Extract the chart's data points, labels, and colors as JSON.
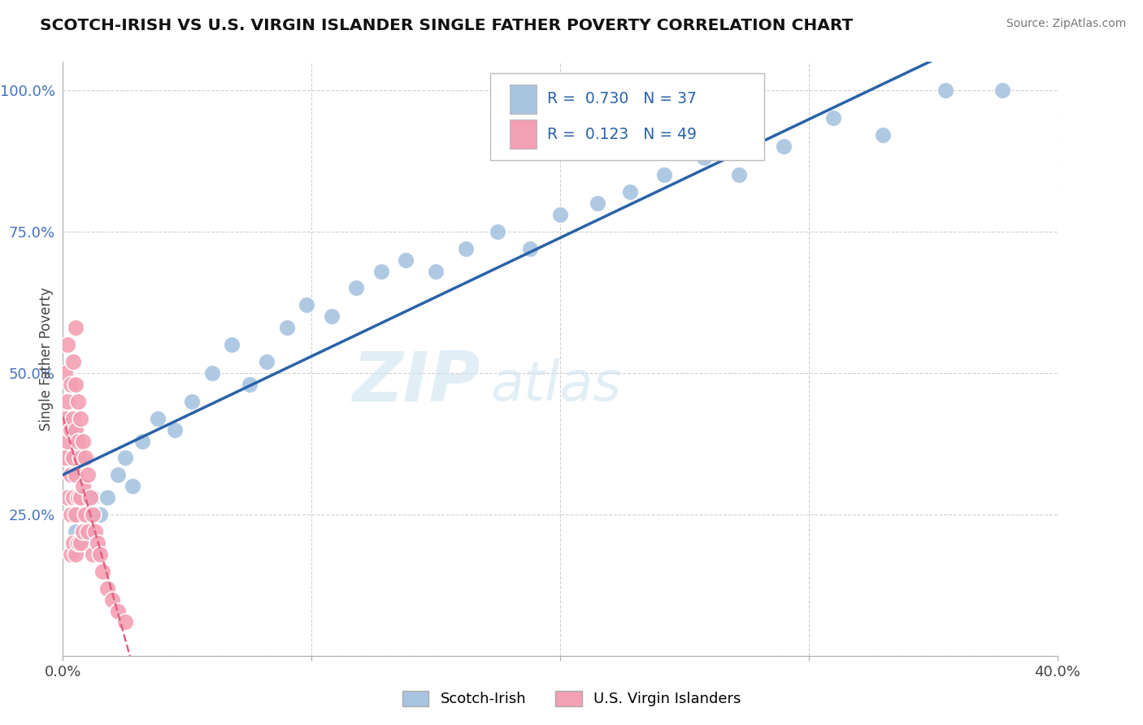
{
  "title": "SCOTCH-IRISH VS U.S. VIRGIN ISLANDER SINGLE FATHER POVERTY CORRELATION CHART",
  "source": "Source: ZipAtlas.com",
  "ylabel": "Single Father Poverty",
  "xlim": [
    0.0,
    0.4
  ],
  "ylim": [
    0.0,
    1.05
  ],
  "scotch_irish_R": 0.73,
  "scotch_irish_N": 37,
  "virgin_islander_R": 0.123,
  "virgin_islander_N": 49,
  "scotch_irish_color": "#a8c4e0",
  "scotch_irish_line_color": "#2962a8",
  "virgin_islander_color": "#f4a0b4",
  "virgin_islander_line_color": "#e06080",
  "watermark_zip": "ZIP",
  "watermark_atlas": "atlas",
  "scotch_irish_x": [
    0.005,
    0.008,
    0.012,
    0.015,
    0.018,
    0.022,
    0.025,
    0.028,
    0.032,
    0.038,
    0.045,
    0.052,
    0.06,
    0.068,
    0.075,
    0.082,
    0.09,
    0.098,
    0.108,
    0.118,
    0.128,
    0.138,
    0.15,
    0.162,
    0.175,
    0.188,
    0.2,
    0.215,
    0.228,
    0.242,
    0.258,
    0.272,
    0.29,
    0.31,
    0.33,
    0.355,
    0.378
  ],
  "scotch_irish_y": [
    0.22,
    0.2,
    0.28,
    0.25,
    0.28,
    0.32,
    0.35,
    0.3,
    0.38,
    0.42,
    0.4,
    0.45,
    0.5,
    0.55,
    0.48,
    0.52,
    0.58,
    0.62,
    0.6,
    0.65,
    0.68,
    0.7,
    0.68,
    0.72,
    0.75,
    0.72,
    0.78,
    0.8,
    0.82,
    0.85,
    0.88,
    0.85,
    0.9,
    0.95,
    0.92,
    1.0,
    1.0
  ],
  "virgin_islander_x": [
    0.001,
    0.001,
    0.001,
    0.002,
    0.002,
    0.002,
    0.002,
    0.003,
    0.003,
    0.003,
    0.003,
    0.003,
    0.004,
    0.004,
    0.004,
    0.004,
    0.004,
    0.005,
    0.005,
    0.005,
    0.005,
    0.005,
    0.005,
    0.006,
    0.006,
    0.006,
    0.006,
    0.007,
    0.007,
    0.007,
    0.007,
    0.008,
    0.008,
    0.008,
    0.009,
    0.009,
    0.01,
    0.01,
    0.011,
    0.012,
    0.012,
    0.013,
    0.014,
    0.015,
    0.016,
    0.018,
    0.02,
    0.022,
    0.025
  ],
  "virgin_islander_y": [
    0.5,
    0.42,
    0.35,
    0.55,
    0.45,
    0.38,
    0.28,
    0.48,
    0.4,
    0.32,
    0.25,
    0.18,
    0.52,
    0.42,
    0.35,
    0.28,
    0.2,
    0.58,
    0.48,
    0.4,
    0.32,
    0.25,
    0.18,
    0.45,
    0.38,
    0.28,
    0.2,
    0.42,
    0.35,
    0.28,
    0.2,
    0.38,
    0.3,
    0.22,
    0.35,
    0.25,
    0.32,
    0.22,
    0.28,
    0.25,
    0.18,
    0.22,
    0.2,
    0.18,
    0.15,
    0.12,
    0.1,
    0.08,
    0.06
  ]
}
